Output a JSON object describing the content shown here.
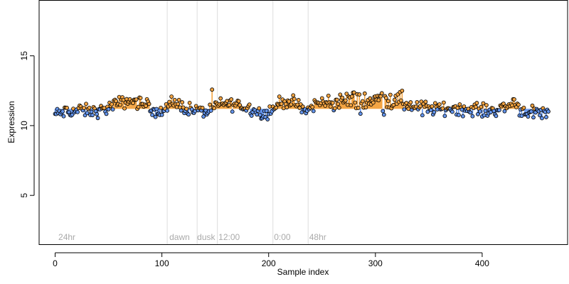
{
  "chart_data": {
    "type": "scatter",
    "title": "",
    "xlabel": "Sample index",
    "ylabel": "Expression",
    "xlim": [
      -15,
      480
    ],
    "ylim": [
      1.5,
      19
    ],
    "xticks": [
      0,
      100,
      200,
      300,
      400
    ],
    "yticks": [
      5,
      10,
      15
    ],
    "grid": false,
    "colors": {
      "blue": "#6495ed",
      "orange": "#f4a442",
      "grey": "#d3d3d3"
    },
    "region_lines": [
      105,
      133,
      152,
      204,
      237
    ],
    "region_labels": [
      {
        "x": 3,
        "text": "24hr"
      },
      {
        "x": 107,
        "text": "dawn"
      },
      {
        "x": 133,
        "text": "dusk"
      },
      {
        "x": 153,
        "text": "12:00"
      },
      {
        "x": 205,
        "text": "0:00"
      },
      {
        "x": 238,
        "text": "48hr"
      }
    ],
    "baseline": 11.2,
    "points": []
  }
}
